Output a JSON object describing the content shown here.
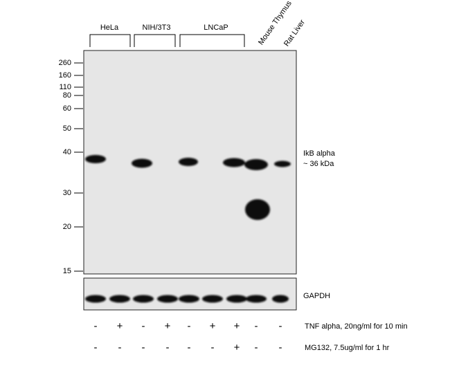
{
  "groups": [
    "HeLa",
    "NIH/3T3",
    "LNCaP"
  ],
  "tissues": [
    "Mouse Thymus",
    "Rat Liver"
  ],
  "markers": [
    "260",
    "160",
    "110",
    "80",
    "60",
    "50",
    "40",
    "30",
    "20",
    "15"
  ],
  "target_label": [
    "IkB alpha",
    "~ 36 kDa"
  ],
  "loading_label": "GAPDH",
  "treatments": [
    {
      "label": "TNF alpha, 20ng/ml for 10 min",
      "signs": [
        "-",
        "+",
        "-",
        "+",
        "-",
        "+",
        "+",
        "-",
        "-"
      ]
    },
    {
      "label": "MG132, 7.5ug/ml for 1 hr",
      "signs": [
        "-",
        "-",
        "-",
        "-",
        "-",
        "-",
        "+",
        "-",
        "-"
      ]
    }
  ]
}
